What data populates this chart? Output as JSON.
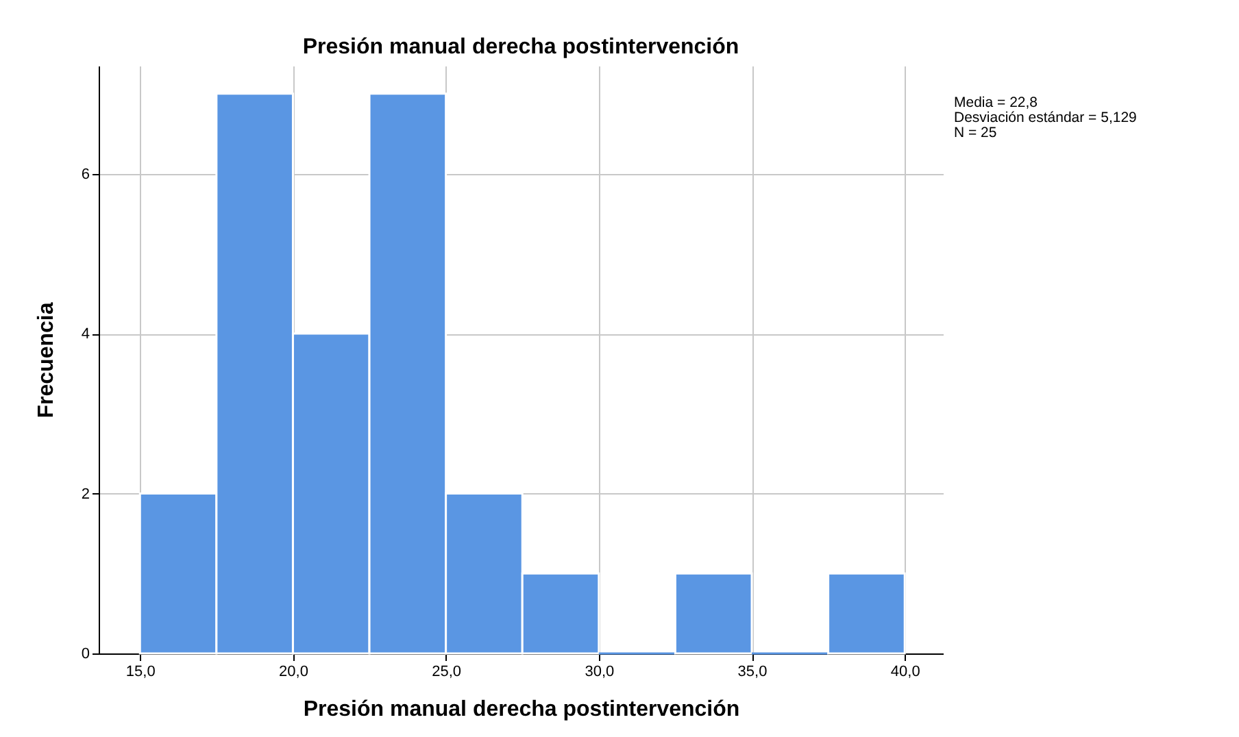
{
  "chart_data": {
    "type": "histogram",
    "title": "Presión manual derecha postintervención",
    "xlabel": "Presión manual derecha postintervención",
    "ylabel": "Frecuencia",
    "bins": [
      15,
      17.5,
      20,
      22.5,
      25,
      27.5,
      30,
      32.5,
      35,
      37.5,
      40
    ],
    "values": [
      2,
      7,
      4,
      7,
      2,
      1,
      0,
      1,
      0,
      1
    ],
    "color": "#5a96e3",
    "xlim": [
      13.65,
      41.25
    ],
    "ylim": [
      0,
      7.35
    ],
    "xticks": [
      {
        "value": 15,
        "label": "15,0"
      },
      {
        "value": 20,
        "label": "20,0"
      },
      {
        "value": 25,
        "label": "25,0"
      },
      {
        "value": 30,
        "label": "30,0"
      },
      {
        "value": 35,
        "label": "35,0"
      },
      {
        "value": 40,
        "label": "40,0"
      }
    ],
    "yticks": [
      0,
      2,
      4,
      6
    ],
    "grid": true,
    "annotations": [
      "Media = 22,8",
      "Desviación estándar = 5,129",
      "N = 25"
    ]
  }
}
